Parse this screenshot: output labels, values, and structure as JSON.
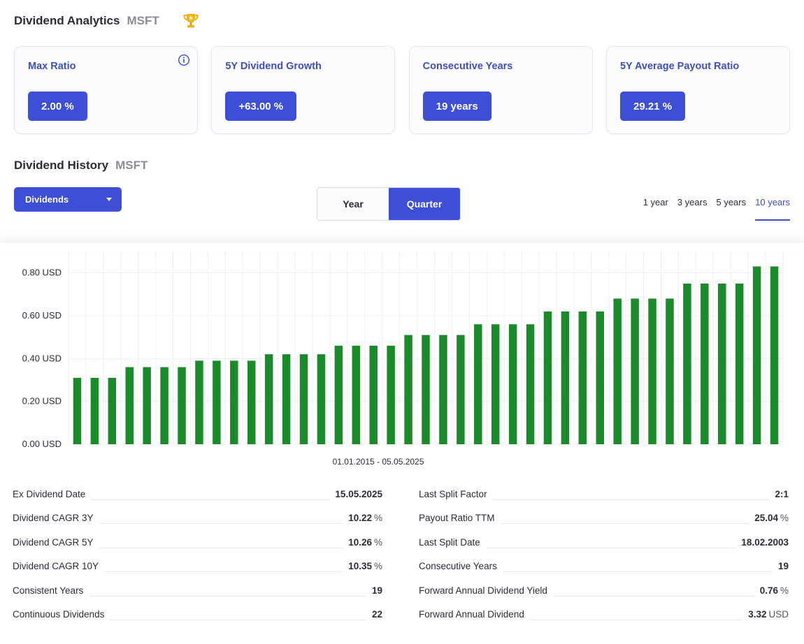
{
  "header": {
    "title": "Dividend Analytics",
    "symbol": "MSFT",
    "trophy_icon": "trophy-icon"
  },
  "cards": [
    {
      "label": "Max Ratio",
      "value": "2.00 %"
    },
    {
      "label": "5Y Dividend Growth",
      "value": "+63.00 %"
    },
    {
      "label": "Consecutive Years",
      "value": "19 years"
    },
    {
      "label": "5Y Average Payout Ratio",
      "value": "29.21 %"
    }
  ],
  "history": {
    "title": "Dividend History",
    "symbol": "MSFT",
    "dropdown_label": "Dividends",
    "toggle": [
      "Year",
      "Quarter"
    ],
    "toggle_active": "Quarter",
    "ranges": [
      "1 year",
      "3 years",
      "5 years",
      "10 years"
    ],
    "range_active": "10 years",
    "date_range": "01.01.2015 - 05.05.2025"
  },
  "colors": {
    "accent": "#3d4fd6",
    "bar": "#1a8a2a"
  },
  "chart_data": {
    "type": "bar",
    "ylabel": "",
    "ylim": [
      0,
      0.9
    ],
    "y_ticks": [
      "0.00 USD",
      "0.20 USD",
      "0.40 USD",
      "0.60 USD",
      "0.80 USD"
    ],
    "y_tick_values": [
      0,
      0.2,
      0.4,
      0.6,
      0.8
    ],
    "grid": true,
    "values": [
      0.31,
      0.31,
      0.31,
      0.36,
      0.36,
      0.36,
      0.36,
      0.39,
      0.39,
      0.39,
      0.39,
      0.42,
      0.42,
      0.42,
      0.42,
      0.46,
      0.46,
      0.46,
      0.46,
      0.51,
      0.51,
      0.51,
      0.51,
      0.56,
      0.56,
      0.56,
      0.56,
      0.62,
      0.62,
      0.62,
      0.62,
      0.68,
      0.68,
      0.68,
      0.68,
      0.75,
      0.75,
      0.75,
      0.75,
      0.83,
      0.83
    ]
  },
  "stats": {
    "left": [
      {
        "key": "Ex Dividend Date",
        "value": "15.05.2025",
        "unit": ""
      },
      {
        "key": "Dividend CAGR 3Y",
        "value": "10.22",
        "unit": "%"
      },
      {
        "key": "Dividend CAGR 5Y",
        "value": "10.26",
        "unit": "%"
      },
      {
        "key": "Dividend CAGR 10Y",
        "value": "10.35",
        "unit": "%"
      },
      {
        "key": "Consistent Years",
        "value": "19",
        "unit": ""
      },
      {
        "key": "Continuous Dividends",
        "value": "22",
        "unit": ""
      }
    ],
    "right": [
      {
        "key": "Last Split Factor",
        "value": "2:1",
        "unit": ""
      },
      {
        "key": "Payout Ratio TTM",
        "value": "25.04",
        "unit": "%"
      },
      {
        "key": "Last Split Date",
        "value": "18.02.2003",
        "unit": ""
      },
      {
        "key": "Consecutive Years",
        "value": "19",
        "unit": ""
      },
      {
        "key": "Forward Annual Dividend Yield",
        "value": "0.76",
        "unit": "%"
      },
      {
        "key": "Forward Annual Dividend",
        "value": "3.32",
        "unit": "USD"
      }
    ]
  }
}
